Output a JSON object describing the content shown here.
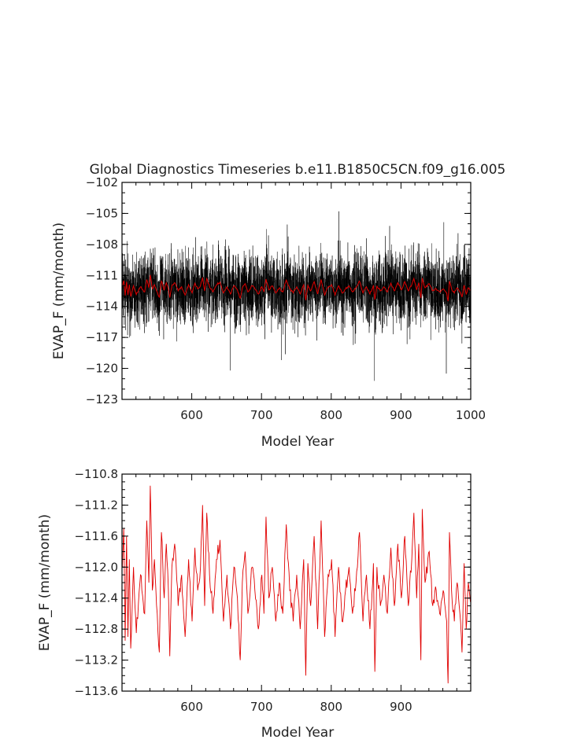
{
  "chart_data": [
    {
      "type": "line",
      "title": "Global Diagnostics Timeseries b.e11.B1850C5CN.f09_g16.005",
      "xlabel": "Model Year",
      "ylabel": "EVAP_F (mm/month)",
      "xlim": [
        500,
        1000
      ],
      "ylim": [
        -123,
        -102
      ],
      "xticks": [
        600,
        700,
        800,
        900,
        1000
      ],
      "yticks": [
        -102,
        -105,
        -108,
        -111,
        -114,
        -117,
        -120,
        -123
      ],
      "grid": false,
      "legend": "none",
      "series": [
        {
          "color": "#000000",
          "resolution": "monthly",
          "mean": -112.2,
          "typical_range": [
            -116.8,
            -107.2
          ],
          "extremes": [
            {
              "x": 811,
              "y": -104.8
            },
            {
              "x": 862,
              "y": -121.2
            },
            {
              "x": 965,
              "y": -120.5
            },
            {
              "x": 655,
              "y": -120.2
            }
          ]
        },
        {
          "color": "#e00000",
          "resolution": "annual",
          "same_values_as": "panel 2 series"
        }
      ]
    },
    {
      "type": "line",
      "title": "",
      "xlabel": "Model Year",
      "ylabel": "EVAP_F (mm/month)",
      "xlim": [
        500,
        1000
      ],
      "ylim": [
        -113.6,
        -110.8
      ],
      "xticks": [
        600,
        700,
        800,
        900
      ],
      "yticks": [
        -110.8,
        -111.2,
        -111.6,
        -112.0,
        -112.4,
        -112.8,
        -113.2,
        -113.6
      ],
      "grid": false,
      "legend": "none",
      "series": [
        {
          "color": "#e00000",
          "resolution": "annual",
          "x_start": 500,
          "x_step": 1,
          "anchors": [
            [
              500,
              -112.0
            ],
            [
              502,
              -111.5
            ],
            [
              504,
              -112.95
            ],
            [
              506,
              -111.6
            ],
            [
              508,
              -112.9
            ],
            [
              510,
              -111.9
            ],
            [
              512,
              -113.05
            ],
            [
              516,
              -112.0
            ],
            [
              520,
              -112.85
            ],
            [
              526,
              -112.1
            ],
            [
              532,
              -112.6
            ],
            [
              535,
              -111.4
            ],
            [
              538,
              -112.2
            ],
            [
              540,
              -110.95
            ],
            [
              543,
              -112.3
            ],
            [
              546,
              -111.9
            ],
            [
              550,
              -112.6
            ],
            [
              553,
              -113.1
            ],
            [
              556,
              -111.55
            ],
            [
              560,
              -112.4
            ],
            [
              563,
              -111.7
            ],
            [
              566,
              -112.3
            ],
            [
              568,
              -113.15
            ],
            [
              571,
              -112.0
            ],
            [
              575,
              -111.7
            ],
            [
              580,
              -112.5
            ],
            [
              585,
              -112.1
            ],
            [
              590,
              -112.9
            ],
            [
              595,
              -111.9
            ],
            [
              600,
              -112.7
            ],
            [
              604,
              -111.75
            ],
            [
              608,
              -112.3
            ],
            [
              612,
              -112.0
            ],
            [
              615,
              -111.2
            ],
            [
              618,
              -112.5
            ],
            [
              621,
              -111.3
            ],
            [
              625,
              -112.1
            ],
            [
              630,
              -112.6
            ],
            [
              635,
              -111.9
            ],
            [
              640,
              -111.65
            ],
            [
              645,
              -112.7
            ],
            [
              650,
              -112.1
            ],
            [
              655,
              -112.8
            ],
            [
              660,
              -112.0
            ],
            [
              665,
              -112.4
            ],
            [
              669,
              -113.2
            ],
            [
              672,
              -112.2
            ],
            [
              676,
              -111.8
            ],
            [
              680,
              -112.6
            ],
            [
              686,
              -112.0
            ],
            [
              690,
              -112.3
            ],
            [
              695,
              -112.8
            ],
            [
              700,
              -112.1
            ],
            [
              703,
              -112.6
            ],
            [
              706,
              -111.35
            ],
            [
              710,
              -112.4
            ],
            [
              715,
              -112.0
            ],
            [
              720,
              -112.7
            ],
            [
              725,
              -112.2
            ],
            [
              730,
              -112.6
            ],
            [
              735,
              -111.45
            ],
            [
              740,
              -112.3
            ],
            [
              745,
              -112.7
            ],
            [
              750,
              -112.1
            ],
            [
              755,
              -112.8
            ],
            [
              760,
              -111.9
            ],
            [
              763,
              -113.4
            ],
            [
              766,
              -111.95
            ],
            [
              770,
              -112.5
            ],
            [
              775,
              -111.6
            ],
            [
              780,
              -112.8
            ],
            [
              785,
              -111.4
            ],
            [
              790,
              -112.9
            ],
            [
              795,
              -112.1
            ],
            [
              800,
              -111.9
            ],
            [
              805,
              -112.9
            ],
            [
              810,
              -112.0
            ],
            [
              815,
              -112.7
            ],
            [
              820,
              -112.3
            ],
            [
              825,
              -112.0
            ],
            [
              830,
              -112.6
            ],
            [
              835,
              -112.2
            ],
            [
              840,
              -111.55
            ],
            [
              845,
              -112.7
            ],
            [
              850,
              -112.1
            ],
            [
              855,
              -112.8
            ],
            [
              860,
              -111.95
            ],
            [
              862,
              -113.35
            ],
            [
              865,
              -112.0
            ],
            [
              870,
              -112.5
            ],
            [
              875,
              -112.1
            ],
            [
              880,
              -112.6
            ],
            [
              885,
              -111.75
            ],
            [
              890,
              -112.5
            ],
            [
              895,
              -111.7
            ],
            [
              900,
              -112.4
            ],
            [
              905,
              -111.6
            ],
            [
              910,
              -112.5
            ],
            [
              915,
              -111.9
            ],
            [
              918,
              -111.3
            ],
            [
              922,
              -112.4
            ],
            [
              925,
              -111.7
            ],
            [
              928,
              -113.2
            ],
            [
              930,
              -111.25
            ],
            [
              934,
              -112.2
            ],
            [
              940,
              -111.8
            ],
            [
              945,
              -112.5
            ],
            [
              950,
              -112.3
            ],
            [
              955,
              -112.6
            ],
            [
              960,
              -112.3
            ],
            [
              965,
              -112.7
            ],
            [
              967,
              -113.5
            ],
            [
              969,
              -111.55
            ],
            [
              972,
              -112.3
            ],
            [
              976,
              -112.7
            ],
            [
              980,
              -112.2
            ],
            [
              984,
              -112.6
            ],
            [
              987,
              -113.1
            ],
            [
              990,
              -111.95
            ],
            [
              993,
              -112.8
            ],
            [
              996,
              -112.2
            ],
            [
              999,
              -112.45
            ]
          ]
        }
      ]
    }
  ]
}
